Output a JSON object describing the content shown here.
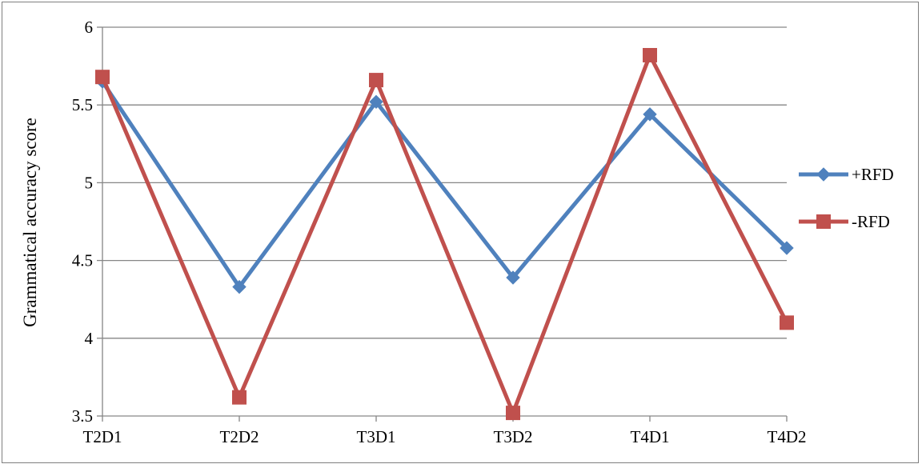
{
  "chart_data": {
    "type": "line",
    "title": "",
    "xlabel": "",
    "ylabel": "Grammatical accuracy score",
    "categories": [
      "T2D1",
      "T2D2",
      "T3D1",
      "T3D2",
      "T4D1",
      "T4D2"
    ],
    "ylim": [
      3.5,
      6
    ],
    "yticks": [
      "3.5",
      "4",
      "4.5",
      "5",
      "5.5",
      "6"
    ],
    "grid": "horizontal",
    "legend_position": "right",
    "series": [
      {
        "name": "+RFD",
        "color": "#4f81bd",
        "marker": "diamond",
        "values": [
          5.65,
          4.33,
          5.52,
          4.39,
          5.44,
          4.58
        ]
      },
      {
        "name": "-RFD",
        "color": "#c0504d",
        "marker": "square",
        "values": [
          5.68,
          3.62,
          5.66,
          3.52,
          5.82,
          4.1
        ]
      }
    ]
  }
}
